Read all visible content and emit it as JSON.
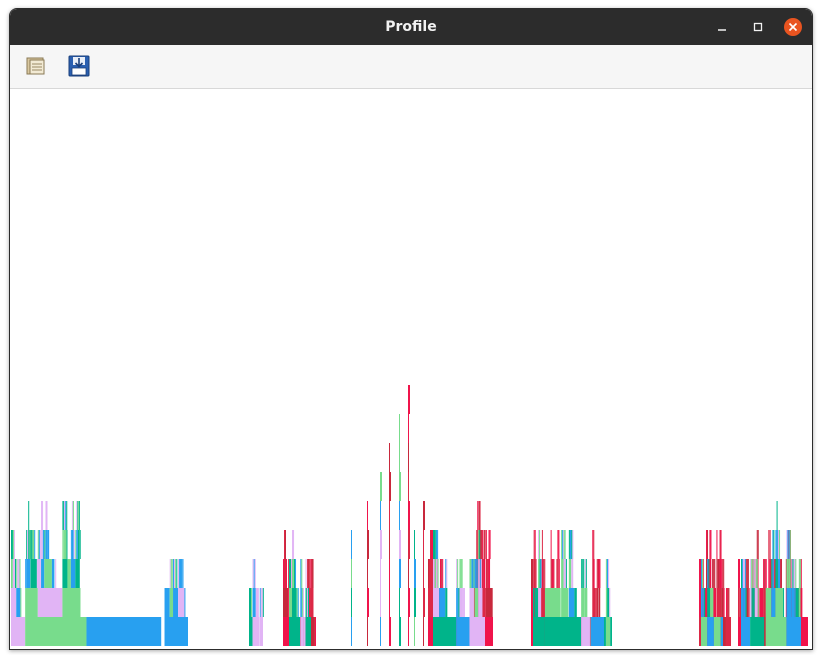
{
  "window": {
    "title": "Profile"
  },
  "window_controls": {
    "minimize_icon": "minimize-icon",
    "maximize_icon": "maximize-icon",
    "close_icon": "close-icon"
  },
  "toolbar": {
    "open_icon": "open-file-icon",
    "save_icon": "save-icon"
  },
  "colors": {
    "titlebar": "#2c2c2c",
    "close_button": "#e95420",
    "teal": "#00b48a",
    "light_green": "#78dc8c",
    "blue": "#28a0f0",
    "lavender": "#e1b4f5",
    "red": "#f0144b",
    "dark_red": "#c8283c",
    "crimson": "#dc2846"
  }
}
